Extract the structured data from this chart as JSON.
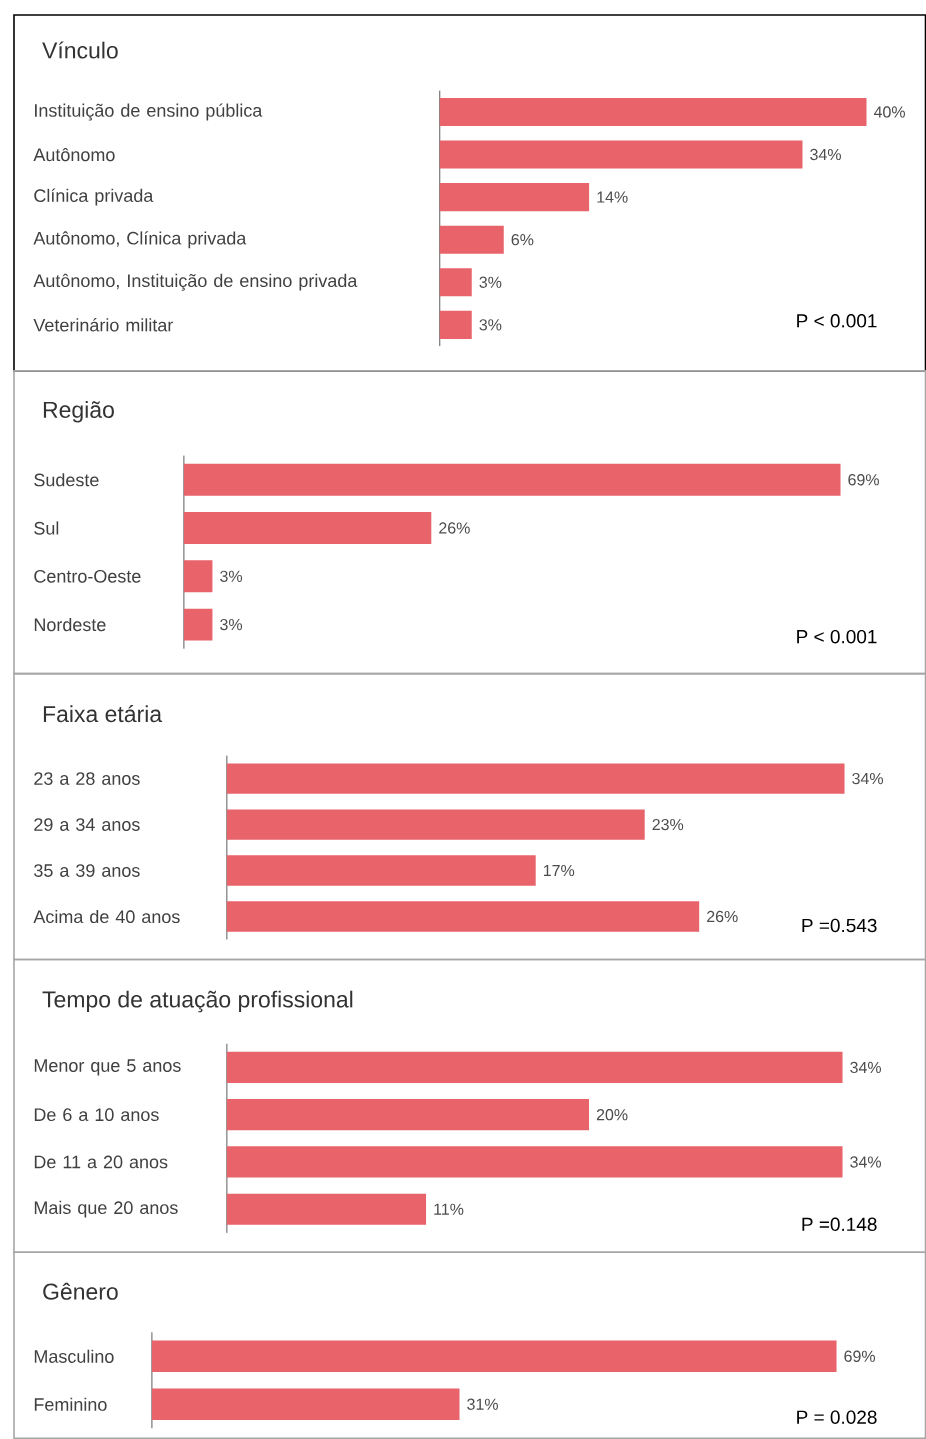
{
  "chart_data": [
    {
      "type": "bar",
      "orientation": "horizontal",
      "title": "Vínculo",
      "categories": [
        "Instituição de ensino pública",
        "Autônomo",
        "Clínica privada",
        "Autônomo, Clínica privada",
        "Autônomo, Instituição de ensino privada",
        "Veterinário militar"
      ],
      "values": [
        40,
        34,
        14,
        6,
        3,
        3
      ],
      "value_labels": [
        "40%",
        "34%",
        "14%",
        "6%",
        "3%",
        "3%"
      ],
      "color": "#e8636a",
      "annotations": [
        "P < 0.001"
      ]
    },
    {
      "type": "bar",
      "orientation": "horizontal",
      "title": "Região",
      "categories": [
        "Sudeste",
        "Sul",
        "Centro-Oeste",
        "Nordeste"
      ],
      "values": [
        69,
        26,
        3,
        3
      ],
      "value_labels": [
        "69%",
        "26%",
        "3%",
        "3%"
      ],
      "color": "#e8636a",
      "annotations": [
        "P < 0.001"
      ]
    },
    {
      "type": "bar",
      "orientation": "horizontal",
      "title": "Faixa etária",
      "categories": [
        "23 a 28 anos",
        "29 a 34 anos",
        "35 a 39 anos",
        "Acima de 40 anos"
      ],
      "values": [
        34,
        23,
        17,
        26
      ],
      "value_labels": [
        "34%",
        "23%",
        "17%",
        "26%"
      ],
      "color": "#e8636a",
      "annotations": [
        "P =0.543"
      ]
    },
    {
      "type": "bar",
      "orientation": "horizontal",
      "title": "Tempo de atuação profissional",
      "categories": [
        "Menor que 5 anos",
        "De 6 a 10 anos",
        "De 11 a 20 anos",
        "Mais que 20 anos"
      ],
      "values": [
        34,
        20,
        34,
        11
      ],
      "value_labels": [
        "34%",
        "20%",
        "34%",
        "11%"
      ],
      "color": "#e8636a",
      "annotations": [
        "P =0.148"
      ]
    },
    {
      "type": "bar",
      "orientation": "horizontal",
      "title": "Gênero",
      "categories": [
        "Masculino",
        "Feminino"
      ],
      "values": [
        69,
        31
      ],
      "value_labels": [
        "69%",
        "31%"
      ],
      "color": "#e8636a",
      "annotations": [
        "P = 0.028"
      ]
    }
  ]
}
